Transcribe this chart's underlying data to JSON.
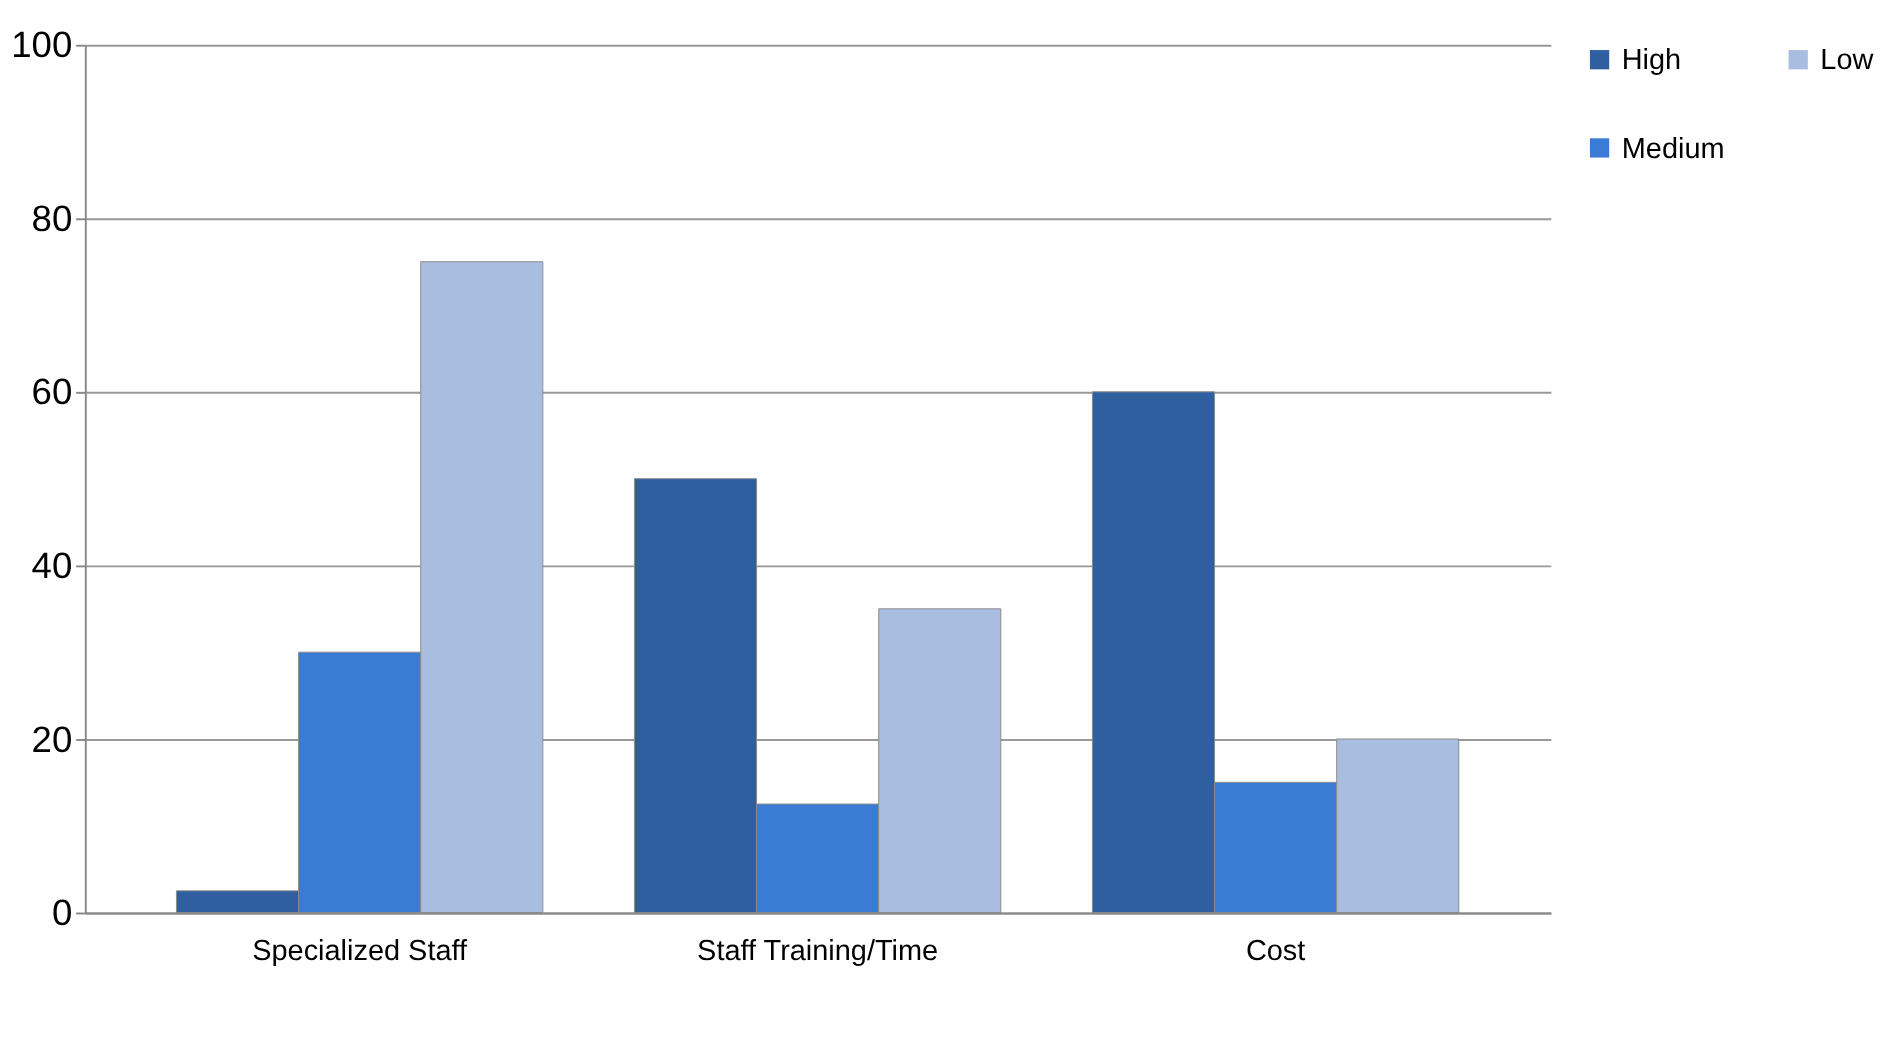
{
  "chart_data": {
    "type": "bar",
    "categories": [
      "Specialized Staff",
      "Staff Training/Time",
      "Cost"
    ],
    "series": [
      {
        "name": "High",
        "color": "#2f5f9e",
        "values": [
          2.5,
          50,
          60
        ]
      },
      {
        "name": "Medium",
        "color": "#3a7bd5",
        "values": [
          30,
          12.5,
          15
        ]
      },
      {
        "name": "Low",
        "color": "#a8bde0",
        "values": [
          75,
          35,
          20
        ]
      }
    ],
    "ylim": [
      0,
      100
    ],
    "yticks": [
      0,
      20,
      40,
      60,
      80,
      100
    ],
    "grid": "y",
    "legend": "right"
  }
}
